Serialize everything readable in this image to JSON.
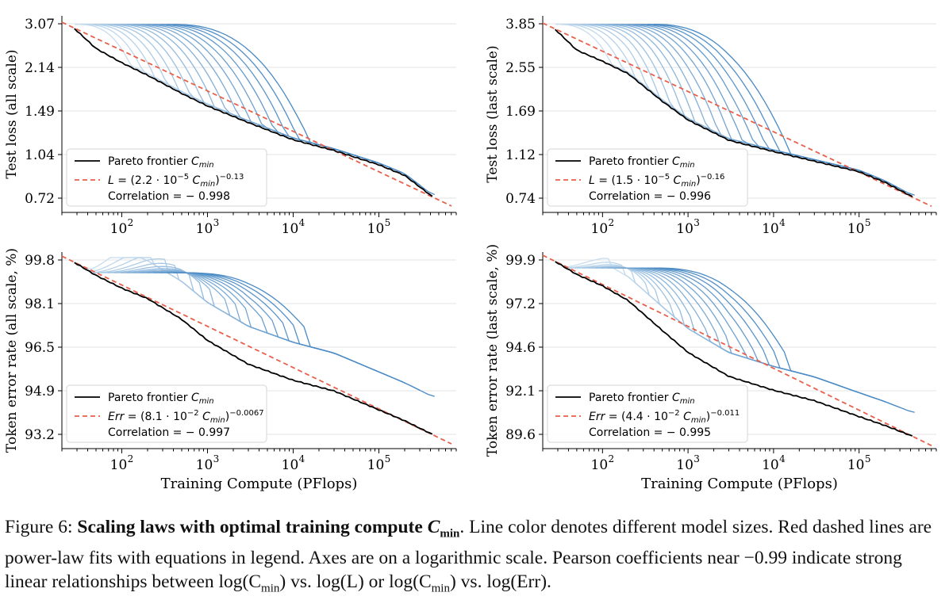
{
  "figure": {
    "xlabel": "Training Compute (PFlops)",
    "x_ticks": [
      "10",
      "10",
      "10",
      "10"
    ],
    "x_tick_exponents": [
      "2",
      "3",
      "4",
      "5"
    ]
  },
  "colors": {
    "frontier": "#000000",
    "fit": "#e8604c",
    "model_light": "#c6dcef",
    "model_dark": "#4a8ac4",
    "grid": "#e3e3e3"
  },
  "legend": {
    "frontier_prefix": "Pareto frontier ",
    "frontier_var": "C",
    "frontier_sub": "min",
    "corr_prefix": "Correlation = − "
  },
  "chart_data": [
    {
      "type": "line",
      "ylabel": "Test loss (all scale)",
      "yticks": [
        "3.07",
        "2.14",
        "1.49",
        "1.04",
        "0.72"
      ],
      "x_log_range": [
        20,
        800000
      ],
      "frontier_x": [
        28,
        50,
        100,
        200,
        500,
        1000,
        3000,
        10000,
        30000,
        100000,
        200000,
        420000
      ],
      "frontier_y": [
        2.95,
        2.5,
        2.22,
        2.0,
        1.72,
        1.55,
        1.35,
        1.17,
        1.07,
        0.95,
        0.87,
        0.73
      ],
      "fit_text": {
        "lhs": "L",
        "coef": "2.2",
        "exp10": "−5",
        "exp": "−0.13"
      },
      "correlation": "0.998",
      "models": 16
    },
    {
      "type": "line",
      "ylabel": "Test loss (last scale)",
      "yticks": [
        "3.85",
        "2.55",
        "1.69",
        "1.12",
        "0.74"
      ],
      "x_log_range": [
        20,
        800000
      ],
      "frontier_x": [
        28,
        50,
        100,
        200,
        500,
        1000,
        3000,
        10000,
        30000,
        100000,
        200000,
        420000
      ],
      "frontier_y": [
        3.65,
        3.0,
        2.7,
        2.4,
        1.85,
        1.55,
        1.28,
        1.15,
        1.05,
        0.95,
        0.86,
        0.75
      ],
      "fit_text": {
        "lhs": "L",
        "coef": "1.5",
        "exp10": "−5",
        "exp": "−0.16"
      },
      "correlation": "0.996",
      "models": 16
    },
    {
      "type": "line",
      "ylabel": "Token error rate (all scale, %)",
      "yticks": [
        "99.8",
        "98.1",
        "96.5",
        "94.9",
        "93.2"
      ],
      "x_log_range": [
        20,
        800000
      ],
      "frontier_x": [
        28,
        50,
        100,
        200,
        500,
        1000,
        3000,
        10000,
        30000,
        100000,
        200000,
        420000
      ],
      "frontier_y": [
        99.7,
        99.2,
        98.7,
        98.3,
        97.5,
        96.7,
        95.8,
        95.2,
        94.8,
        94.1,
        93.7,
        93.2
      ],
      "fit_text": {
        "lhs": "Err",
        "coef": "8.1",
        "exp10": "−2",
        "exp": "−0.0067"
      },
      "correlation": "0.997",
      "models": 16
    },
    {
      "type": "line",
      "ylabel": "Token error rate (last scale, %)",
      "yticks": [
        "99.9",
        "97.2",
        "94.6",
        "92.1",
        "89.6"
      ],
      "x_log_range": [
        20,
        800000
      ],
      "frontier_x": [
        28,
        50,
        100,
        200,
        500,
        1000,
        3000,
        10000,
        30000,
        100000,
        200000,
        420000
      ],
      "frontier_y": [
        99.8,
        99.0,
        98.3,
        97.4,
        95.6,
        94.3,
        92.9,
        92.1,
        91.5,
        90.6,
        90.1,
        89.5
      ],
      "fit_text": {
        "lhs": "Err",
        "coef": "4.4",
        "exp10": "−2",
        "exp": "−0.011"
      },
      "correlation": "0.995",
      "models": 16
    }
  ],
  "caption": {
    "label": "Figure 6: ",
    "bold": "Scaling laws with optimal training compute ",
    "bold_var": "C",
    "bold_sub": "min",
    "rest": ". Line color denotes different model sizes. Red dashed lines are power-law fits with equations in legend. Axes are on a logarithmic scale. Pearson coefficients near −0.99 indicate strong linear relationships between log(C",
    "rest_sub": "min",
    "rest2": ") vs. log(L) or log(C",
    "rest2_sub": "min",
    "rest3": ") vs. log(Err)."
  }
}
